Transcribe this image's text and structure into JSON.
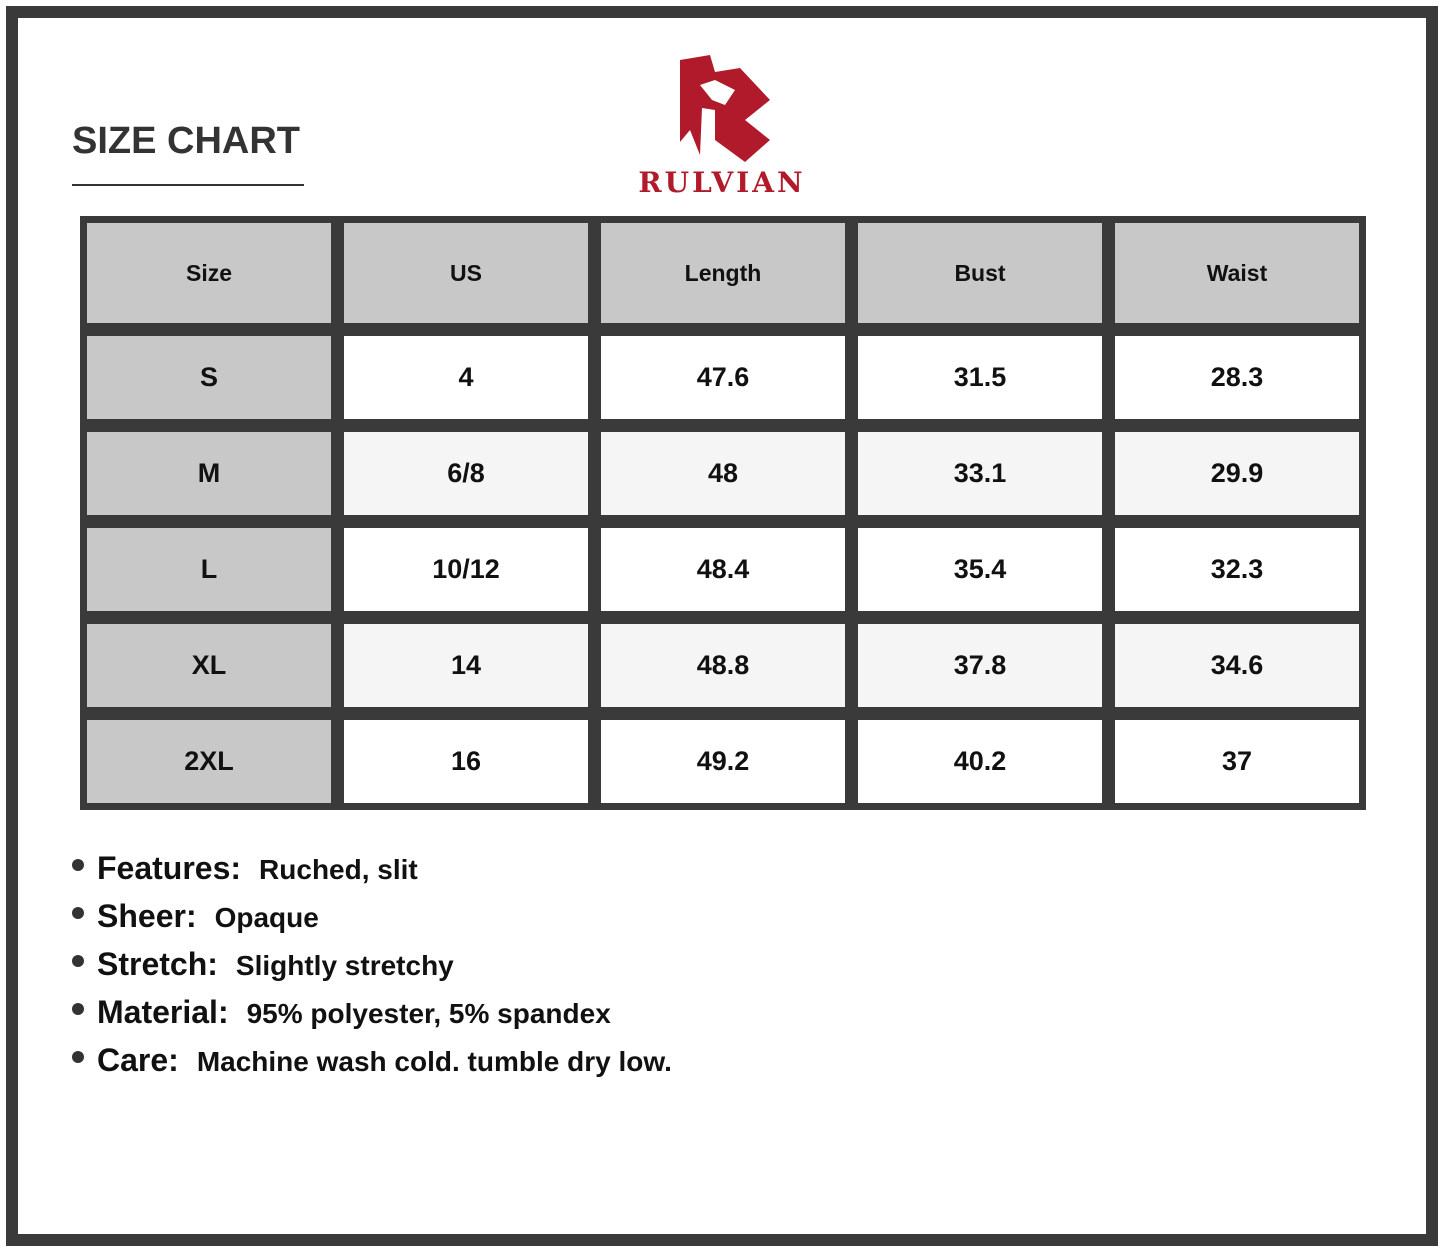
{
  "title": "SIZE CHART",
  "brand": {
    "name": "RULVIAN",
    "color": "#b01a2a"
  },
  "table": {
    "headers": [
      "Size",
      "US",
      "Length",
      "Bust",
      "Waist"
    ],
    "rows": [
      [
        "S",
        "4",
        "47.6",
        "31.5",
        "28.3"
      ],
      [
        "M",
        "6/8",
        "48",
        "33.1",
        "29.9"
      ],
      [
        "L",
        "10/12",
        "48.4",
        "35.4",
        "32.3"
      ],
      [
        "XL",
        "14",
        "48.8",
        "37.8",
        "34.6"
      ],
      [
        "2XL",
        "16",
        "49.2",
        "40.2",
        "37"
      ]
    ]
  },
  "specs": [
    {
      "label": "Features:",
      "value": "Ruched, slit"
    },
    {
      "label": "Sheer:",
      "value": "Opaque"
    },
    {
      "label": "Stretch:",
      "value": "Slightly stretchy"
    },
    {
      "label": "Material:",
      "value": "95% polyester, 5% spandex"
    },
    {
      "label": "Care:",
      "value": "Machine wash cold. tumble dry low."
    }
  ]
}
